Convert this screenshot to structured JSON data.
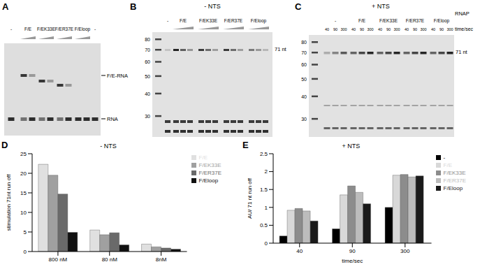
{
  "panel_labels": [
    "A",
    "B",
    "C",
    "D",
    "E"
  ],
  "gels": {
    "A": {
      "lanes": [
        "-",
        "F/E",
        "F/EK33E",
        "F/ER37E",
        "F/Eloop",
        "-"
      ],
      "bands": [
        "F/E-RNA",
        "RNA"
      ]
    },
    "B": {
      "title": "- NTS",
      "lanes": [
        "-",
        "F/E",
        "F/EK33E",
        "F/ER37E",
        "F/Eloop"
      ],
      "markers": [
        80,
        70,
        60,
        50,
        40,
        30
      ],
      "product": "71 nt"
    },
    "C": {
      "title": "+ NTS",
      "lane_header": "RNAP",
      "lanes": [
        "-",
        "F/E",
        "F/EK33E",
        "F/ER37E",
        "F/Eloop"
      ],
      "times": [
        40,
        90,
        300
      ],
      "time_label": "time/sec",
      "markers": [
        80,
        70,
        60,
        50,
        40,
        30
      ],
      "product": "71 nt"
    }
  },
  "chart_data": [
    {
      "type": "bar",
      "title": "- NTS",
      "y_label": "stimulation 71nt run off",
      "categories": [
        "800 nM",
        "80 nM",
        "8nM"
      ],
      "series": [
        {
          "name": "F/E",
          "color": "#e0e0e0",
          "values": [
            22.3,
            5.5,
            1.9
          ]
        },
        {
          "name": "F/EK33E",
          "color": "#a0a0a0",
          "values": [
            19.5,
            4.3,
            1.2
          ]
        },
        {
          "name": "F/ER37E",
          "color": "#6a6a6a",
          "values": [
            14.7,
            4.8,
            0.9
          ]
        },
        {
          "name": "F/Eloop",
          "color": "#111111",
          "values": [
            4.9,
            1.7,
            0.6
          ]
        }
      ],
      "ylim": [
        0,
        25
      ],
      "yticks": [
        0,
        5,
        10,
        15,
        20,
        25
      ],
      "legend": "right"
    },
    {
      "type": "bar",
      "title": "+ NTS",
      "y_label": "AU/ 71 nt run off",
      "x_label": "time/sec",
      "categories": [
        "40",
        "90",
        "300"
      ],
      "series": [
        {
          "name": "-",
          "color": "#000000",
          "values": [
            0.2,
            0.4,
            1.0
          ]
        },
        {
          "name": "F/E",
          "color": "#d8d8d8",
          "values": [
            0.92,
            1.35,
            1.9
          ]
        },
        {
          "name": "F/EK33E",
          "color": "#8c8c8c",
          "values": [
            0.97,
            1.6,
            1.92
          ]
        },
        {
          "name": "F/ER37E",
          "color": "#bcbcbc",
          "values": [
            0.9,
            1.42,
            1.85
          ]
        },
        {
          "name": "F/Eloop",
          "color": "#1a1a1a",
          "values": [
            0.62,
            1.1,
            1.88
          ]
        }
      ],
      "ylim": [
        0,
        2.5
      ],
      "yticks": [
        0,
        0.5,
        1,
        1.5,
        2,
        2.5
      ],
      "legend": "right"
    }
  ]
}
